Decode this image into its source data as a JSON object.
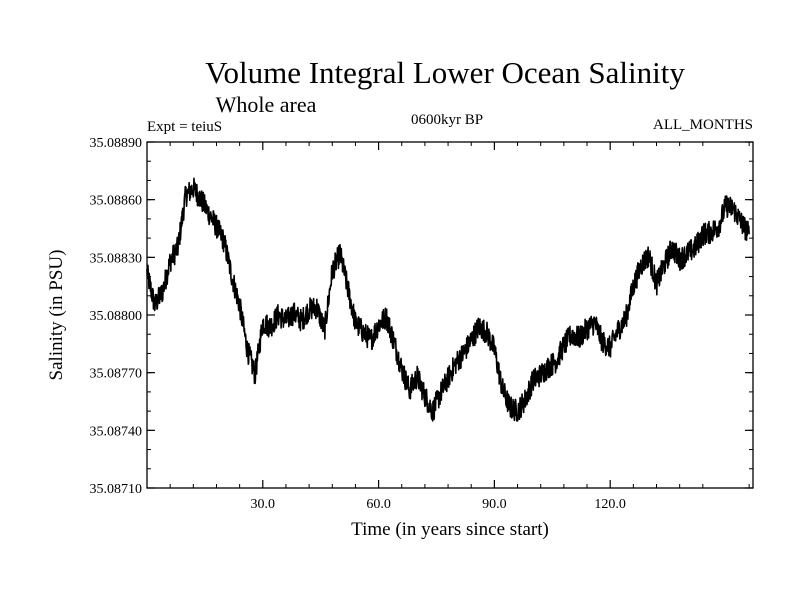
{
  "chart_data": {
    "type": "line",
    "title": "Volume Integral Lower Ocean Salinity",
    "subtitle": "Whole area",
    "annotations": {
      "left": "Expt = teiuS",
      "center": "0600kyr BP",
      "right": "ALL_MONTHS"
    },
    "xlabel": "Time (in years since start)",
    "ylabel": "Salinity (in PSU)",
    "xlim": [
      0,
      157
    ],
    "ylim": [
      35.0871,
      35.0889
    ],
    "x_ticks": [
      30,
      60,
      90,
      120
    ],
    "x_tick_labels": [
      "30.0",
      "60.0",
      "90.0",
      "120.0"
    ],
    "y_ticks": [
      35.0871,
      35.0874,
      35.0877,
      35.088,
      35.0883,
      35.0886,
      35.0889
    ],
    "y_tick_labels": [
      "35.08710",
      "35.08740",
      "35.08770",
      "35.08800",
      "35.08830",
      "35.08860",
      "35.08890"
    ],
    "grid": false,
    "series": [
      {
        "name": "Salinity",
        "color": "#000000",
        "x": [
          0,
          2,
          4,
          6,
          8,
          10,
          12,
          14,
          16,
          18,
          20,
          22,
          24,
          26,
          28,
          30,
          32,
          34,
          36,
          38,
          40,
          42,
          44,
          46,
          48,
          50,
          52,
          54,
          56,
          58,
          60,
          62,
          64,
          66,
          68,
          70,
          72,
          74,
          76,
          78,
          80,
          82,
          84,
          86,
          88,
          90,
          92,
          94,
          96,
          98,
          100,
          102,
          104,
          106,
          108,
          110,
          112,
          114,
          116,
          118,
          120,
          122,
          124,
          126,
          128,
          130,
          132,
          134,
          136,
          138,
          140,
          142,
          144,
          146,
          148,
          150,
          152,
          154,
          156
        ],
        "values": [
          35.08822,
          35.08805,
          35.08812,
          35.08828,
          35.08835,
          35.08862,
          35.08866,
          35.0886,
          35.08853,
          35.08846,
          35.08838,
          35.0882,
          35.08805,
          35.08782,
          35.08769,
          35.08796,
          35.08794,
          35.088,
          35.08797,
          35.08801,
          35.08797,
          35.08803,
          35.08804,
          35.08792,
          35.08823,
          35.08832,
          35.08814,
          35.08796,
          35.08791,
          35.08787,
          35.08795,
          35.08799,
          35.08786,
          35.08772,
          35.08761,
          35.08768,
          35.08758,
          35.0875,
          35.08759,
          35.08767,
          35.08775,
          35.0878,
          35.08787,
          35.08794,
          35.08791,
          35.08782,
          35.08762,
          35.08752,
          35.0875,
          35.08756,
          35.08766,
          35.08769,
          35.08773,
          35.08776,
          35.08784,
          35.0879,
          35.08788,
          35.08793,
          35.08796,
          35.08786,
          35.08783,
          35.08792,
          35.08798,
          35.08815,
          35.08826,
          35.08831,
          35.08816,
          35.08826,
          35.08835,
          35.08829,
          35.08832,
          35.08835,
          35.08842,
          35.08843,
          35.08846,
          35.08857,
          35.08855,
          35.08848,
          35.08842
        ]
      }
    ]
  }
}
